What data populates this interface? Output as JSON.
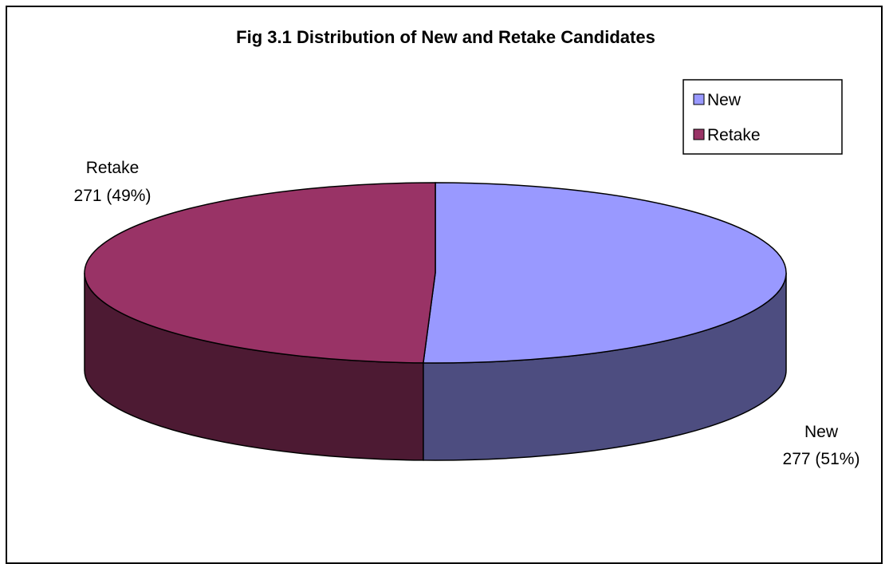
{
  "chart_data": {
    "type": "pie",
    "title": "Fig 3.1 Distribution of New and Retake Candidates",
    "slices": [
      {
        "name": "New",
        "value": 277,
        "percent": "51%",
        "color": "#9999ff",
        "side_color": "#4d4d80"
      },
      {
        "name": "Retake",
        "value": 271,
        "percent": "49%",
        "color": "#993366",
        "side_color": "#4d1a33"
      }
    ],
    "data_labels": [
      {
        "series": "New",
        "name_line": "New",
        "value_line": "277 (51%)"
      },
      {
        "series": "Retake",
        "name_line": "Retake",
        "value_line": "271 (49%)"
      }
    ],
    "legend": {
      "placement": "top-right",
      "entries": [
        "New",
        "Retake"
      ]
    },
    "three_d": true
  }
}
